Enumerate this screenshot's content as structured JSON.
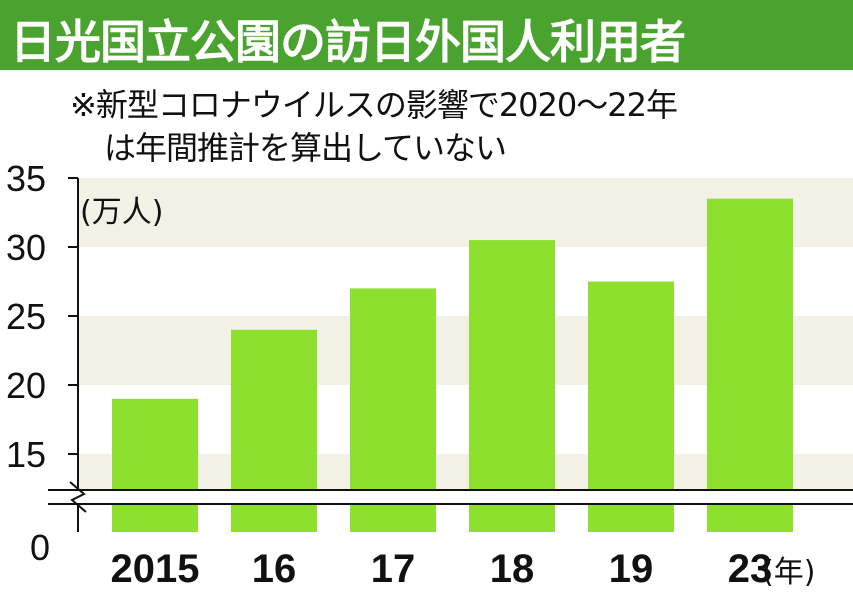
{
  "header": {
    "title": "日光国立公園の訪日外国人利用者",
    "note_line1": "※新型コロナウイルスの影響で2020～22年",
    "note_line2": "は年間推計を算出していない"
  },
  "colors": {
    "title_background": "#4aa32e",
    "bar": "#8ee02e",
    "band": "#f3f1e6"
  },
  "chart_data": {
    "type": "bar",
    "title": "日光国立公園の訪日外国人利用者",
    "ylabel": "(万人)",
    "xlabel": "(年)",
    "categories": [
      "2015",
      "16",
      "17",
      "18",
      "19",
      "23"
    ],
    "values": [
      19,
      24,
      27,
      30.5,
      27.5,
      33.5
    ],
    "ylim": [
      15,
      35
    ],
    "axis_break": true,
    "yticks": [
      "35",
      "30",
      "25",
      "20",
      "15",
      "0"
    ],
    "grid": "horizontal bands"
  }
}
